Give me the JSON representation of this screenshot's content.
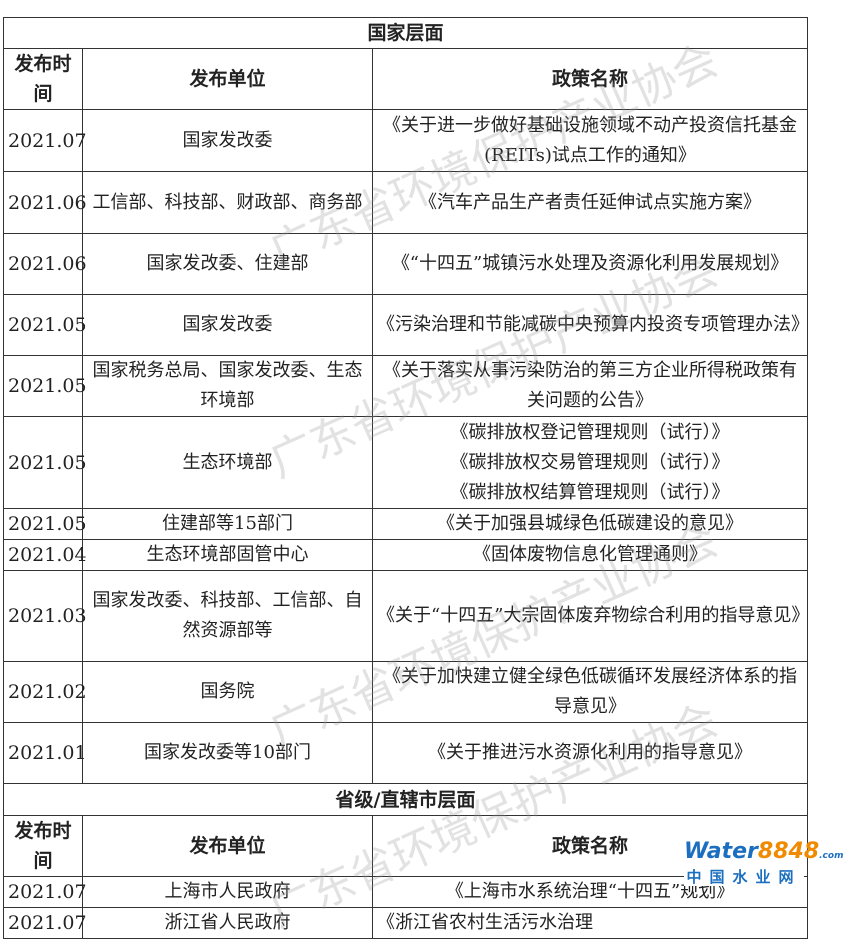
{
  "national": {
    "section_title": "国家层面",
    "headers": [
      "发布时间",
      "发布单位",
      "政策名称"
    ],
    "rows": [
      {
        "date": "2021.07",
        "issuer": "国家发改委",
        "policy": "《关于进一步做好基础设施领域不动产投资信托基金(REITs)试点工作的通知》"
      },
      {
        "date": "2021.06",
        "issuer": "工信部、科技部、财政部、商务部",
        "policy": "《汽车产品生产者责任延伸试点实施方案》"
      },
      {
        "date": "2021.06",
        "issuer": "国家发改委、住建部",
        "policy": "《“十四五”城镇污水处理及资源化利用发展规划》"
      },
      {
        "date": "2021.05",
        "issuer": "国家发改委",
        "policy": "《污染治理和节能减碳中央预算内投资专项管理办法》"
      },
      {
        "date": "2021.05",
        "issuer": "国家税务总局、国家发改委、生态环境部",
        "policy": "《关于落实从事污染防治的第三方企业所得税政策有关问题的公告》"
      },
      {
        "date": "2021.05",
        "issuer": "生态环境部",
        "policy": "《碳排放权登记管理规则（试行）》\n《碳排放权交易管理规则（试行）》\n《碳排放权结算管理规则（试行）》"
      },
      {
        "date": "2021.05",
        "issuer": "住建部等15部门",
        "policy": "《关于加强县城绿色低碳建设的意见》"
      },
      {
        "date": "2021.04",
        "issuer": "生态环境部固管中心",
        "policy": "《固体废物信息化管理通则》"
      },
      {
        "date": "2021.03",
        "issuer": "国家发改委、科技部、工信部、自然资源部等",
        "policy": "《关于“十四五”大宗固体废弃物综合利用的指导意见》"
      },
      {
        "date": "2021.02",
        "issuer": "国务院",
        "policy": "《关于加快建立健全绿色低碳循环发展经济体系的指导意见》"
      },
      {
        "date": "2021.01",
        "issuer": "国家发改委等10部门",
        "policy": "《关于推进污水资源化利用的指导意见》"
      }
    ]
  },
  "provincial": {
    "section_title": "省级/直辖市层面",
    "headers": [
      "发布时间",
      "发布单位",
      "政策名称"
    ],
    "rows": [
      {
        "date": "2021.07",
        "issuer": "上海市人民政府",
        "policy": "《上海市水系统治理“十四五”规划》"
      },
      {
        "date": "2021.07",
        "issuer": "浙江省人民政府",
        "policy": "《浙江省农村生活污水治理"
      }
    ]
  },
  "watermark": "广东省环境保护产业协会",
  "logo": {
    "text_top": "water8848.com",
    "text_bottom": "中国水业网"
  }
}
